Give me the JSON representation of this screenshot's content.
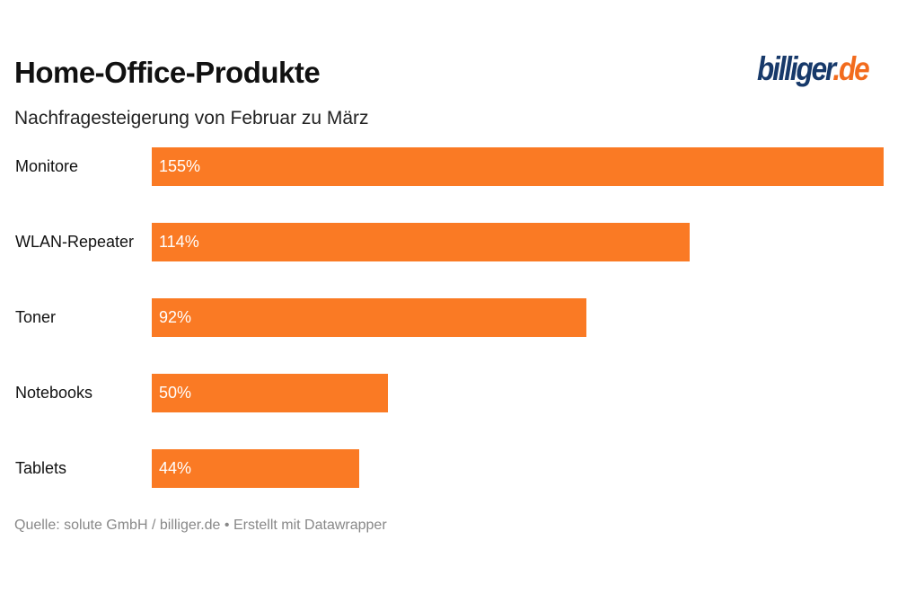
{
  "header": {
    "title": "Home-Office-Produkte",
    "subtitle": "Nachfragesteigerung von Februar zu März",
    "logo_main": "billiger",
    "logo_suffix": ".de"
  },
  "chart_data": {
    "type": "bar",
    "orientation": "horizontal",
    "title": "Home-Office-Produkte",
    "subtitle": "Nachfragesteigerung von Februar zu März",
    "categories": [
      "Monitore",
      "WLAN-Repeater",
      "Toner",
      "Notebooks",
      "Tablets"
    ],
    "values": [
      155,
      114,
      92,
      50,
      44
    ],
    "value_labels": [
      "155%",
      "114%",
      "92%",
      "50%",
      "44%"
    ],
    "xlim": [
      0,
      155
    ],
    "bar_color": "#fa7a24"
  },
  "footer": {
    "text": "Quelle: solute GmbH / billiger.de • Erstellt mit Datawrapper"
  }
}
